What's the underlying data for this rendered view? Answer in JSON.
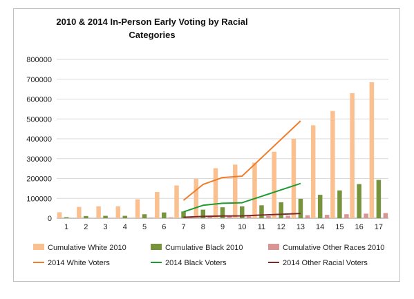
{
  "chart_data": {
    "type": "bar",
    "title": "2010 & 2014 In-Person Early Voting by Racial Categories",
    "xlabel": "",
    "ylabel": "",
    "categories": [
      "1",
      "2",
      "3",
      "4",
      "5",
      "6",
      "7",
      "8",
      "9",
      "10",
      "11",
      "12",
      "13",
      "14",
      "15",
      "16",
      "17"
    ],
    "ylim": [
      0,
      800000
    ],
    "yticks": [
      0,
      100000,
      200000,
      300000,
      400000,
      500000,
      600000,
      700000,
      800000
    ],
    "grid": true,
    "legend": "bottom",
    "series": [
      {
        "name": "Cumulative White 2010",
        "kind": "bar",
        "color": "#fac090",
        "values": [
          30000,
          57000,
          60000,
          60000,
          95000,
          132000,
          165000,
          198000,
          252000,
          270000,
          280000,
          335000,
          400000,
          468000,
          540000,
          630000,
          685000
        ]
      },
      {
        "name": "Cumulative Black 2010",
        "kind": "bar",
        "color": "#77933c",
        "values": [
          5000,
          11000,
          12000,
          12000,
          20000,
          29000,
          34000,
          43000,
          55000,
          60000,
          65000,
          80000,
          98000,
          118000,
          140000,
          172000,
          193000
        ]
      },
      {
        "name": "Cumulative Other Races 2010",
        "kind": "bar",
        "color": "#d99594",
        "values": [
          1000,
          1500,
          2000,
          2000,
          3000,
          4000,
          6000,
          7000,
          9000,
          10000,
          11000,
          13000,
          15000,
          17000,
          20000,
          23000,
          26000
        ]
      },
      {
        "name": "2014 White Voters",
        "kind": "line",
        "color": "#f07c2a",
        "values": [
          null,
          null,
          null,
          null,
          null,
          null,
          90000,
          170000,
          205000,
          212000,
          null,
          null,
          490000,
          null,
          null,
          null,
          null
        ]
      },
      {
        "name": "2014 Black Voters",
        "kind": "line",
        "color": "#1e9a2e",
        "values": [
          null,
          null,
          null,
          null,
          null,
          null,
          32000,
          65000,
          75000,
          78000,
          null,
          null,
          175000,
          null,
          null,
          null,
          null
        ]
      },
      {
        "name": "2014 Other Racial Voters",
        "kind": "line",
        "color": "#7b2a2a",
        "values": [
          null,
          null,
          null,
          null,
          null,
          null,
          5000,
          9000,
          11000,
          12000,
          null,
          null,
          24000,
          null,
          null,
          null,
          null
        ]
      }
    ]
  }
}
